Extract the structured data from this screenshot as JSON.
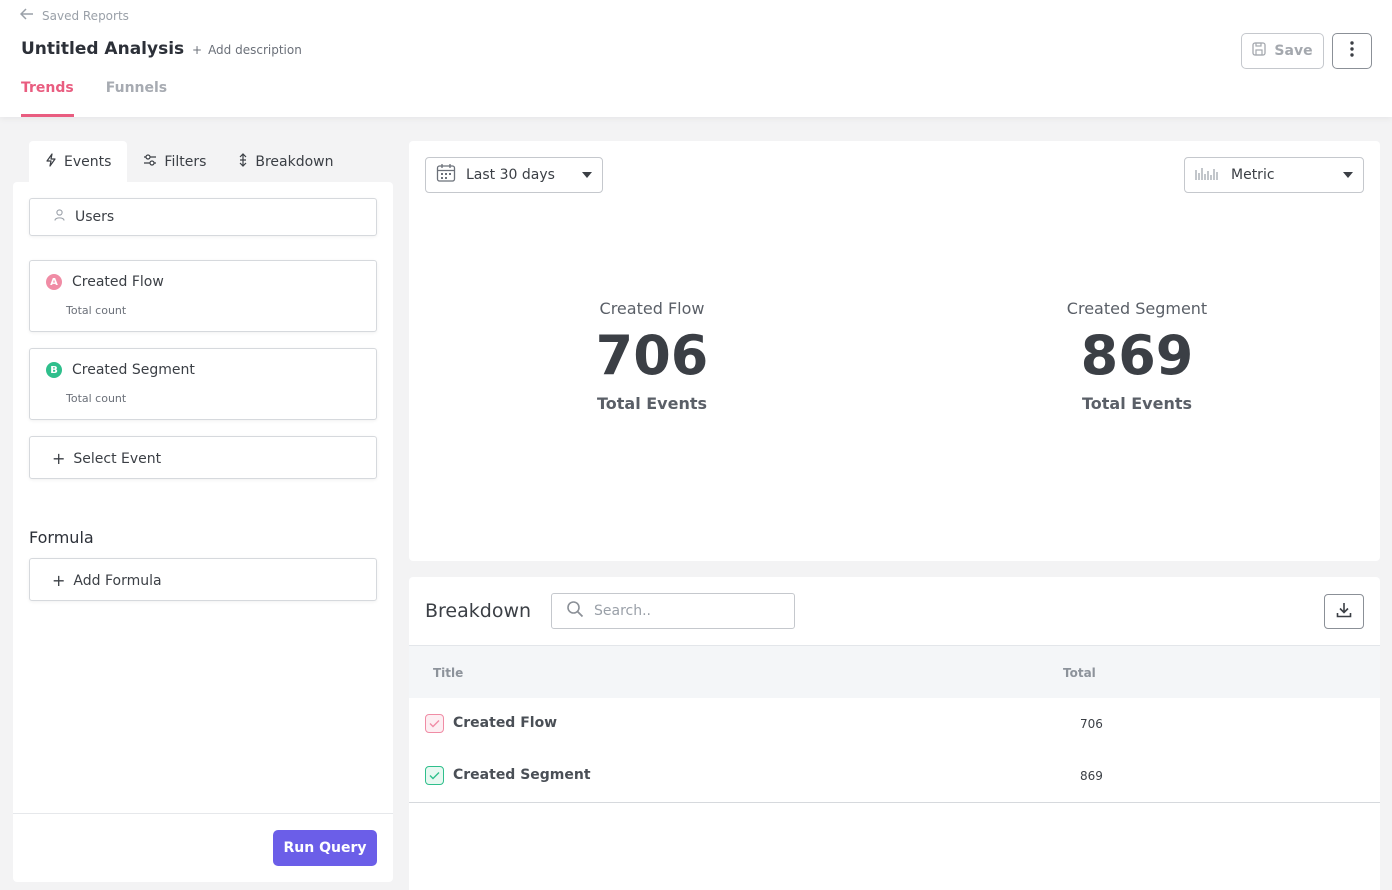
{
  "header": {
    "back_label": "Saved Reports",
    "title": "Untitled Analysis",
    "add_description": "Add description",
    "tabs": [
      {
        "label": "Trends",
        "active": true
      },
      {
        "label": "Funnels",
        "active": false
      }
    ],
    "save_label": "Save"
  },
  "left": {
    "tabs": [
      {
        "label": "Events",
        "icon": "lightning-icon",
        "active": true
      },
      {
        "label": "Filters",
        "icon": "sliders-icon",
        "active": false
      },
      {
        "label": "Breakdown",
        "icon": "breakdown-icon",
        "active": false
      }
    ],
    "users_label": "Users",
    "events": [
      {
        "badge": "A",
        "name": "Created Flow",
        "sub": "Total count",
        "color": "#f08ca5"
      },
      {
        "badge": "B",
        "name": "Created Segment",
        "sub": "Total count",
        "color": "#2fbf8c"
      }
    ],
    "select_event": "Select Event",
    "formula_label": "Formula",
    "add_formula": "Add Formula",
    "run_query": "Run Query"
  },
  "metric_panel": {
    "date_range": "Last 30 days",
    "view": "Metric",
    "metrics": [
      {
        "name": "Created Flow",
        "value": "706",
        "unit": "Total Events"
      },
      {
        "name": "Created Segment",
        "value": "869",
        "unit": "Total Events"
      }
    ]
  },
  "breakdown": {
    "title": "Breakdown",
    "search_placeholder": "Search..",
    "columns": {
      "title": "Title",
      "total": "Total"
    },
    "rows": [
      {
        "title": "Created Flow",
        "total": "706",
        "color": "#f08ca5"
      },
      {
        "title": "Created Segment",
        "total": "869",
        "color": "#2fbf8c"
      }
    ]
  },
  "colors": {
    "accent": "#e95d80",
    "primary_button": "#6b5ee8"
  }
}
